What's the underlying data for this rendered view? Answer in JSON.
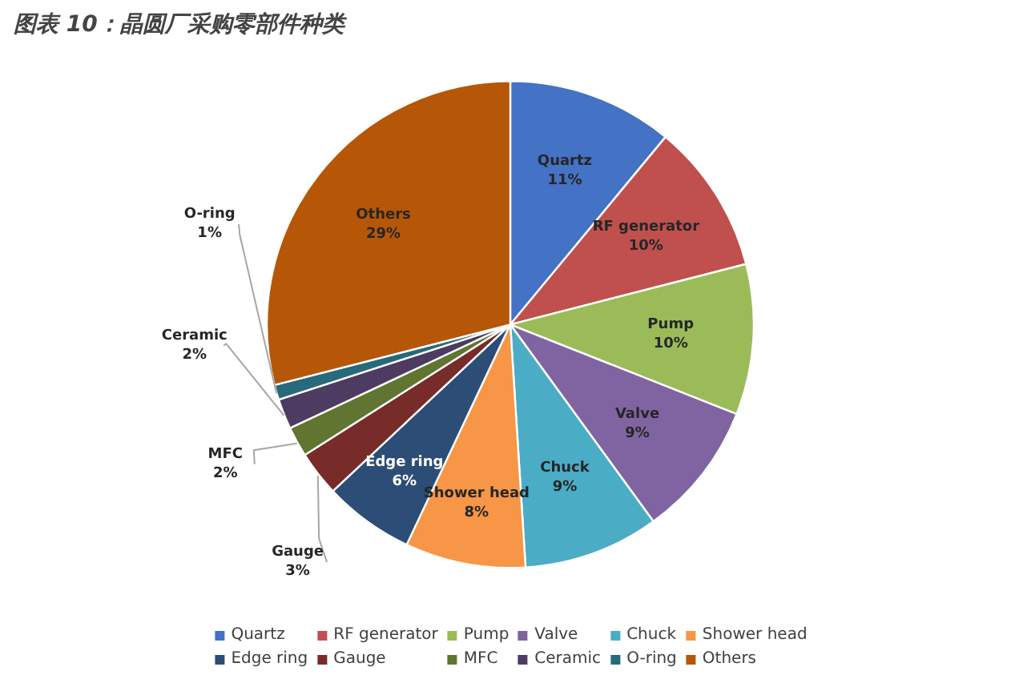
{
  "chart_data": {
    "type": "pie",
    "title": "图表 10：晶圆厂采购零部件种类",
    "categories": [
      "Quartz",
      "RF generator",
      "Pump",
      "Valve",
      "Chuck",
      "Shower head",
      "Edge ring",
      "Gauge",
      "MFC",
      "Ceramic",
      "O-ring",
      "Others"
    ],
    "values": [
      11,
      10,
      10,
      9,
      9,
      8,
      6,
      3,
      2,
      2,
      1,
      29
    ],
    "colors": [
      "#4472c4",
      "#c0504d",
      "#9bbb59",
      "#8064a2",
      "#4bacc6",
      "#f79646",
      "#2c4d75",
      "#772c2a",
      "#5f7530",
      "#4d3b62",
      "#276a7c",
      "#b65708"
    ],
    "value_labels": [
      "11%",
      "10%",
      "10%",
      "9%",
      "9%",
      "8%",
      "6%",
      "3%",
      "2%",
      "2%",
      "1%",
      "29%"
    ],
    "legend": "bottom"
  }
}
